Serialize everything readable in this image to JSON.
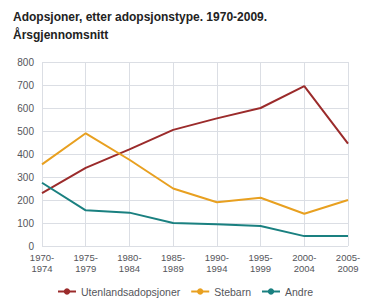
{
  "chart_data": {
    "type": "line",
    "title": "Adopsjoner, etter adopsjonstype. 1970-2009.",
    "subtitle": "Årsgjennomsnitt",
    "categories": [
      "1970-\n1974",
      "1975-\n1979",
      "1980-\n1984",
      "1985-\n1989",
      "1990-\n1994",
      "1995-\n1999",
      "2000-\n2004",
      "2005-\n2009"
    ],
    "series": [
      {
        "name": "Utenlandsadopsjoner",
        "color": "#9B2B2B",
        "values": [
          230,
          340,
          420,
          505,
          555,
          600,
          695,
          445
        ]
      },
      {
        "name": "Stebarn",
        "color": "#E8A020",
        "values": [
          355,
          490,
          375,
          250,
          190,
          210,
          140,
          200
        ]
      },
      {
        "name": "Andre",
        "color": "#1A8080",
        "values": [
          275,
          155,
          145,
          100,
          95,
          87,
          43,
          43
        ]
      }
    ],
    "ylim": [
      0,
      800
    ],
    "yticks": [
      0,
      100,
      200,
      300,
      400,
      500,
      600,
      700,
      800
    ],
    "grid": true,
    "legend": "bottom"
  }
}
